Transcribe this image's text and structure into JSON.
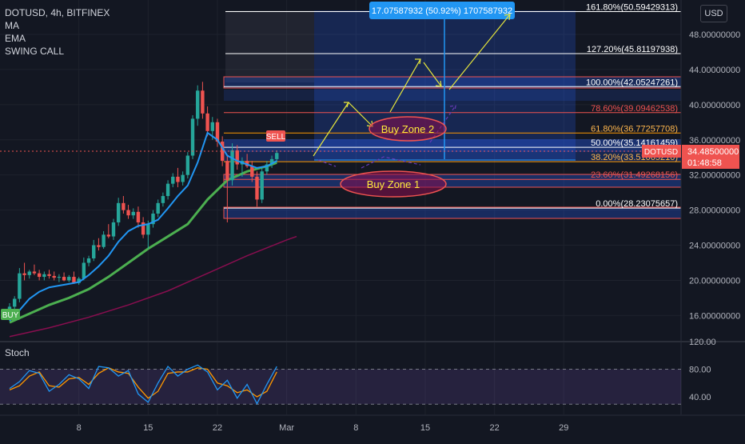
{
  "legend": {
    "symbol": "DOTUSD, 4h, BITFINEX",
    "ind1": "MA",
    "ind2": "EMA",
    "ind3": "SWING CALL"
  },
  "currency_label": "USD",
  "stoch_label": "Stoch",
  "price_tag": {
    "symbol": "DOTUSD",
    "price": "34.48500000",
    "countdown": "01:48:58"
  },
  "measure_label": "17.07587932 (50.92%) 1707587932",
  "zone_labels": {
    "zone1": "Buy Zone 1",
    "zone2": "Buy Zone 2"
  },
  "signal_labels": {
    "buy": "BUY",
    "sell": "SELL"
  },
  "chart_data": {
    "type": "candlestick",
    "price_axis": {
      "range": [
        14.2,
        51.2
      ],
      "ticks": [
        {
          "value": 48,
          "label": "48.00000000"
        },
        {
          "value": 44,
          "label": "44.00000000"
        },
        {
          "value": 40,
          "label": "40.00000000"
        },
        {
          "value": 36,
          "label": "36.00000000"
        },
        {
          "value": 32,
          "label": "32.00000000"
        },
        {
          "value": 28,
          "label": "28.00000000"
        },
        {
          "value": 24,
          "label": "24.00000000"
        },
        {
          "value": 20,
          "label": "20.00000000"
        },
        {
          "value": 16,
          "label": "16.00000000"
        }
      ]
    },
    "time_axis": {
      "range": [
        1,
        30
      ],
      "ticks": [
        {
          "day": 8,
          "label": "8"
        },
        {
          "day": 15,
          "label": "15"
        },
        {
          "day": 22,
          "label": "22"
        },
        {
          "day": 29,
          "label": "Mar"
        },
        {
          "day": 36,
          "label": "8"
        },
        {
          "day": 43,
          "label": "15"
        },
        {
          "day": 50,
          "label": "22"
        },
        {
          "day": 57,
          "label": "29"
        }
      ]
    },
    "fib_levels": [
      {
        "label": "161.80%(50.59429313)",
        "value": 50.594
      },
      {
        "label": "127.20%(45.81197938)",
        "value": 45.812
      },
      {
        "label": "100.00%(42.05247261)",
        "value": 42.052
      },
      {
        "label": "78.60%(39.09462538)",
        "value": 39.095
      },
      {
        "label": "61.80%(36.77257708)",
        "value": 36.773
      },
      {
        "label": "50.00%(35.14161459)",
        "value": 35.142
      },
      {
        "label": "38.20%(33.51065210)",
        "value": 33.511
      },
      {
        "label": "23.60%(31.49268156)",
        "value": 31.493
      },
      {
        "label": "0.00%(28.23075657)",
        "value": 28.231
      }
    ],
    "stoch_axis": {
      "range": [
        20,
        120
      ],
      "ticks": [
        {
          "value": 120,
          "label": "120.00"
        },
        {
          "value": 80,
          "label": "80.00"
        },
        {
          "value": 40,
          "label": "40.00"
        }
      ]
    },
    "candles": [
      {
        "t": 1.0,
        "o": 15.6,
        "h": 17.4,
        "l": 15.4,
        "c": 17.0
      },
      {
        "t": 1.5,
        "o": 17.0,
        "h": 18.2,
        "l": 16.6,
        "c": 17.9
      },
      {
        "t": 2.0,
        "o": 17.9,
        "h": 21.4,
        "l": 17.5,
        "c": 20.8
      },
      {
        "t": 2.5,
        "o": 20.8,
        "h": 22.0,
        "l": 20.0,
        "c": 20.6
      },
      {
        "t": 3.0,
        "o": 20.6,
        "h": 21.2,
        "l": 20.2,
        "c": 21.0
      },
      {
        "t": 3.5,
        "o": 21.0,
        "h": 21.8,
        "l": 20.6,
        "c": 20.8
      },
      {
        "t": 4.0,
        "o": 20.8,
        "h": 21.2,
        "l": 20.0,
        "c": 20.4
      },
      {
        "t": 4.5,
        "o": 20.4,
        "h": 21.0,
        "l": 20.0,
        "c": 20.7
      },
      {
        "t": 5.0,
        "o": 20.7,
        "h": 21.2,
        "l": 20.2,
        "c": 20.5
      },
      {
        "t": 5.5,
        "o": 20.5,
        "h": 21.0,
        "l": 20.0,
        "c": 20.3
      },
      {
        "t": 6.0,
        "o": 20.3,
        "h": 20.7,
        "l": 19.8,
        "c": 20.4
      },
      {
        "t": 6.5,
        "o": 20.4,
        "h": 20.9,
        "l": 19.9,
        "c": 20.0
      },
      {
        "t": 7.0,
        "o": 20.0,
        "h": 20.6,
        "l": 19.8,
        "c": 20.4
      },
      {
        "t": 7.5,
        "o": 20.4,
        "h": 21.0,
        "l": 19.6,
        "c": 19.7
      },
      {
        "t": 8.0,
        "o": 19.7,
        "h": 20.4,
        "l": 19.5,
        "c": 20.2
      },
      {
        "t": 8.5,
        "o": 20.2,
        "h": 22.6,
        "l": 20.0,
        "c": 22.0
      },
      {
        "t": 9.0,
        "o": 22.0,
        "h": 22.8,
        "l": 21.6,
        "c": 22.5
      },
      {
        "t": 9.5,
        "o": 22.5,
        "h": 24.6,
        "l": 22.2,
        "c": 24.0
      },
      {
        "t": 10.0,
        "o": 24.0,
        "h": 24.8,
        "l": 23.4,
        "c": 23.8
      },
      {
        "t": 10.5,
        "o": 23.8,
        "h": 25.6,
        "l": 23.6,
        "c": 25.2
      },
      {
        "t": 11.0,
        "o": 25.2,
        "h": 26.4,
        "l": 24.8,
        "c": 25.0
      },
      {
        "t": 11.5,
        "o": 25.0,
        "h": 27.0,
        "l": 24.6,
        "c": 26.6
      },
      {
        "t": 12.0,
        "o": 26.6,
        "h": 29.4,
        "l": 26.2,
        "c": 28.8
      },
      {
        "t": 12.5,
        "o": 28.8,
        "h": 29.6,
        "l": 27.6,
        "c": 28.0
      },
      {
        "t": 13.0,
        "o": 28.0,
        "h": 28.6,
        "l": 27.0,
        "c": 27.4
      },
      {
        "t": 13.5,
        "o": 27.4,
        "h": 28.2,
        "l": 27.0,
        "c": 27.8
      },
      {
        "t": 14.0,
        "o": 27.8,
        "h": 28.4,
        "l": 26.0,
        "c": 26.6
      },
      {
        "t": 14.5,
        "o": 26.6,
        "h": 27.2,
        "l": 24.8,
        "c": 25.2
      },
      {
        "t": 15.0,
        "o": 25.2,
        "h": 26.8,
        "l": 23.6,
        "c": 26.4
      },
      {
        "t": 15.5,
        "o": 26.4,
        "h": 28.0,
        "l": 26.0,
        "c": 27.6
      },
      {
        "t": 16.0,
        "o": 27.6,
        "h": 29.2,
        "l": 27.2,
        "c": 28.8
      },
      {
        "t": 16.5,
        "o": 28.8,
        "h": 30.0,
        "l": 28.4,
        "c": 29.6
      },
      {
        "t": 17.0,
        "o": 29.6,
        "h": 31.4,
        "l": 29.2,
        "c": 31.0
      },
      {
        "t": 17.5,
        "o": 31.0,
        "h": 32.2,
        "l": 30.6,
        "c": 31.8
      },
      {
        "t": 18.0,
        "o": 31.8,
        "h": 32.8,
        "l": 30.6,
        "c": 31.2
      },
      {
        "t": 18.5,
        "o": 31.2,
        "h": 32.4,
        "l": 30.8,
        "c": 32.0
      },
      {
        "t": 19.0,
        "o": 32.0,
        "h": 34.6,
        "l": 31.6,
        "c": 34.2
      },
      {
        "t": 19.5,
        "o": 34.2,
        "h": 38.8,
        "l": 33.8,
        "c": 38.4
      },
      {
        "t": 20.0,
        "o": 38.4,
        "h": 42.2,
        "l": 37.6,
        "c": 41.6
      },
      {
        "t": 20.5,
        "o": 41.6,
        "h": 42.6,
        "l": 38.4,
        "c": 39.0
      },
      {
        "t": 21.0,
        "o": 39.0,
        "h": 39.8,
        "l": 36.4,
        "c": 37.0
      },
      {
        "t": 21.5,
        "o": 37.0,
        "h": 38.6,
        "l": 36.0,
        "c": 38.0
      },
      {
        "t": 22.0,
        "o": 38.0,
        "h": 38.4,
        "l": 35.2,
        "c": 35.8
      },
      {
        "t": 22.5,
        "o": 35.8,
        "h": 36.4,
        "l": 33.0,
        "c": 33.6
      },
      {
        "t": 23.0,
        "o": 33.6,
        "h": 34.2,
        "l": 26.6,
        "c": 31.4
      },
      {
        "t": 23.5,
        "o": 31.4,
        "h": 35.6,
        "l": 30.8,
        "c": 34.8
      },
      {
        "t": 24.0,
        "o": 34.8,
        "h": 35.4,
        "l": 32.6,
        "c": 33.2
      },
      {
        "t": 24.5,
        "o": 33.2,
        "h": 34.0,
        "l": 31.8,
        "c": 33.6
      },
      {
        "t": 25.0,
        "o": 33.6,
        "h": 34.4,
        "l": 32.8,
        "c": 33.0
      },
      {
        "t": 25.5,
        "o": 33.0,
        "h": 33.6,
        "l": 31.2,
        "c": 31.8
      },
      {
        "t": 26.0,
        "o": 31.8,
        "h": 32.4,
        "l": 28.4,
        "c": 29.2
      },
      {
        "t": 26.5,
        "o": 29.2,
        "h": 32.8,
        "l": 28.8,
        "c": 32.4
      },
      {
        "t": 27.0,
        "o": 32.4,
        "h": 33.6,
        "l": 32.0,
        "c": 33.2
      },
      {
        "t": 27.5,
        "o": 33.2,
        "h": 34.2,
        "l": 32.8,
        "c": 33.8
      },
      {
        "t": 28.0,
        "o": 33.8,
        "h": 34.8,
        "l": 33.4,
        "c": 34.5
      }
    ],
    "ma_line": [
      [
        1,
        15.4
      ],
      [
        2,
        16.6
      ],
      [
        3,
        17.9
      ],
      [
        4,
        18.7
      ],
      [
        5,
        19.2
      ],
      [
        6,
        19.4
      ],
      [
        7,
        19.6
      ],
      [
        8,
        19.8
      ],
      [
        9,
        20.6
      ],
      [
        10,
        21.6
      ],
      [
        11,
        22.8
      ],
      [
        12,
        24.4
      ],
      [
        13,
        25.6
      ],
      [
        14,
        26.2
      ],
      [
        15,
        26.4
      ],
      [
        16,
        26.9
      ],
      [
        17,
        28.2
      ],
      [
        18,
        29.6
      ],
      [
        19,
        30.8
      ],
      [
        20,
        33.4
      ],
      [
        21,
        36.8
      ],
      [
        22,
        36.0
      ],
      [
        23,
        34.2
      ],
      [
        24,
        33.6
      ],
      [
        25,
        33.2
      ],
      [
        26,
        32.8
      ],
      [
        27,
        33.0
      ],
      [
        28,
        33.6
      ]
    ],
    "ema_line": [
      [
        1,
        15.2
      ],
      [
        3,
        16.2
      ],
      [
        5,
        17.2
      ],
      [
        7,
        18.0
      ],
      [
        9,
        19.0
      ],
      [
        11,
        20.4
      ],
      [
        13,
        22.0
      ],
      [
        15,
        23.6
      ],
      [
        17,
        25.0
      ],
      [
        19,
        26.4
      ],
      [
        21,
        29.2
      ],
      [
        23,
        31.4
      ],
      [
        25,
        32.4
      ],
      [
        27,
        33.0
      ],
      [
        28,
        33.4
      ]
    ],
    "slow_ma_line": [
      [
        1,
        13.6
      ],
      [
        5,
        14.6
      ],
      [
        9,
        15.8
      ],
      [
        13,
        17.2
      ],
      [
        17,
        18.8
      ],
      [
        21,
        20.8
      ],
      [
        25,
        22.8
      ],
      [
        29,
        24.6
      ],
      [
        30,
        25.0
      ]
    ],
    "stoch_k": [
      [
        1,
        52
      ],
      [
        2,
        62
      ],
      [
        3,
        78
      ],
      [
        4,
        74
      ],
      [
        5,
        48
      ],
      [
        6,
        58
      ],
      [
        7,
        72
      ],
      [
        8,
        66
      ],
      [
        9,
        52
      ],
      [
        10,
        84
      ],
      [
        11,
        82
      ],
      [
        12,
        70
      ],
      [
        13,
        78
      ],
      [
        14,
        44
      ],
      [
        15,
        32
      ],
      [
        16,
        60
      ],
      [
        17,
        84
      ],
      [
        18,
        70
      ],
      [
        19,
        80
      ],
      [
        20,
        86
      ],
      [
        21,
        76
      ],
      [
        22,
        50
      ],
      [
        23,
        64
      ],
      [
        24,
        38
      ],
      [
        25,
        58
      ],
      [
        26,
        30
      ],
      [
        27,
        58
      ],
      [
        28,
        84
      ]
    ],
    "stoch_d": [
      [
        1,
        50
      ],
      [
        2,
        56
      ],
      [
        3,
        70
      ],
      [
        4,
        76
      ],
      [
        5,
        56
      ],
      [
        6,
        54
      ],
      [
        7,
        66
      ],
      [
        8,
        68
      ],
      [
        9,
        58
      ],
      [
        10,
        74
      ],
      [
        11,
        82
      ],
      [
        12,
        76
      ],
      [
        13,
        74
      ],
      [
        14,
        54
      ],
      [
        15,
        38
      ],
      [
        16,
        48
      ],
      [
        17,
        74
      ],
      [
        18,
        76
      ],
      [
        19,
        76
      ],
      [
        20,
        82
      ],
      [
        21,
        80
      ],
      [
        22,
        60
      ],
      [
        23,
        56
      ],
      [
        24,
        46
      ],
      [
        25,
        50
      ],
      [
        26,
        40
      ],
      [
        27,
        48
      ],
      [
        28,
        76
      ]
    ]
  }
}
